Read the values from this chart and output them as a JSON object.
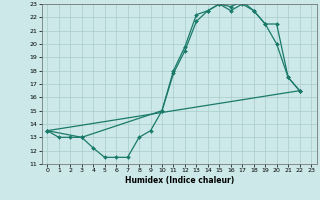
{
  "title": "",
  "xlabel": "Humidex (Indice chaleur)",
  "bg_color": "#cce8e8",
  "grid_color": "#aacccc",
  "line_color": "#1a7a6a",
  "xlim": [
    -0.5,
    23.5
  ],
  "ylim": [
    11,
    23
  ],
  "xticks": [
    0,
    1,
    2,
    3,
    4,
    5,
    6,
    7,
    8,
    9,
    10,
    11,
    12,
    13,
    14,
    15,
    16,
    17,
    18,
    19,
    20,
    21,
    22,
    23
  ],
  "yticks": [
    11,
    12,
    13,
    14,
    15,
    16,
    17,
    18,
    19,
    20,
    21,
    22,
    23
  ],
  "line1_x": [
    0,
    1,
    2,
    3,
    4,
    5,
    6,
    7,
    8,
    9,
    10,
    11,
    12,
    13,
    14,
    15,
    16,
    17,
    18,
    19,
    20,
    21,
    22
  ],
  "line1_y": [
    13.5,
    13.0,
    13.0,
    13.0,
    12.2,
    11.5,
    11.5,
    11.5,
    13.0,
    13.5,
    15.0,
    17.8,
    19.5,
    21.7,
    22.5,
    23.0,
    22.5,
    23.0,
    22.5,
    21.5,
    20.0,
    17.5,
    16.5
  ],
  "line2_x": [
    0,
    3,
    10,
    11,
    12,
    13,
    14,
    15,
    16,
    17,
    18,
    19,
    20,
    21,
    22
  ],
  "line2_y": [
    13.5,
    13.0,
    15.0,
    18.0,
    19.8,
    22.2,
    22.5,
    23.0,
    22.8,
    23.2,
    22.5,
    21.5,
    21.5,
    17.5,
    16.5
  ],
  "line3_x": [
    0,
    22
  ],
  "line3_y": [
    13.5,
    16.5
  ]
}
